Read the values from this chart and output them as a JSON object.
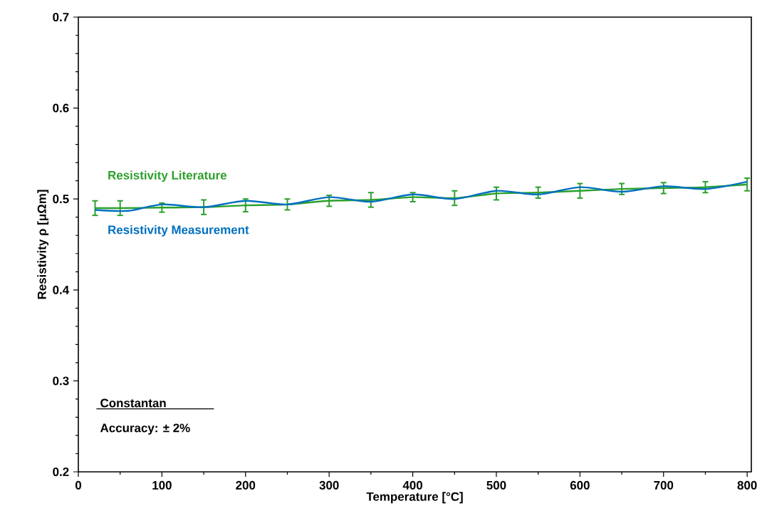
{
  "chart_data": {
    "type": "line",
    "xlabel": "Temperature  [°C]",
    "ylabel": "Resistivity ρ [μΩm]",
    "xlim": [
      0,
      805
    ],
    "ylim": [
      0.2,
      0.7
    ],
    "xticks": [
      0,
      100,
      200,
      300,
      400,
      500,
      600,
      700,
      800
    ],
    "yticks": [
      0.2,
      0.3,
      0.4,
      0.5,
      0.6,
      0.7
    ],
    "legend": false,
    "grid": false,
    "marker": "none",
    "series": [
      {
        "name": "Resistivity Literature",
        "color": "#2ca02c",
        "x": [
          20,
          50,
          100,
          150,
          200,
          250,
          300,
          350,
          400,
          450,
          500,
          550,
          600,
          650,
          700,
          750,
          800
        ],
        "values": [
          0.49,
          0.49,
          0.4905,
          0.491,
          0.493,
          0.494,
          0.498,
          0.499,
          0.502,
          0.501,
          0.506,
          0.507,
          0.509,
          0.511,
          0.512,
          0.513,
          0.516
        ],
        "errors": [
          0.008,
          0.008,
          0.005,
          0.008,
          0.007,
          0.006,
          0.006,
          0.008,
          0.005,
          0.008,
          0.007,
          0.006,
          0.008,
          0.006,
          0.006,
          0.006,
          0.007
        ]
      },
      {
        "name": "Resistivity Measurement",
        "color": "#0070c0",
        "x": [
          20,
          60,
          100,
          150,
          200,
          250,
          300,
          350,
          400,
          450,
          500,
          550,
          600,
          650,
          700,
          750,
          800
        ],
        "values": [
          0.488,
          0.487,
          0.494,
          0.491,
          0.498,
          0.494,
          0.502,
          0.497,
          0.505,
          0.5,
          0.509,
          0.505,
          0.513,
          0.508,
          0.514,
          0.511,
          0.519
        ]
      }
    ],
    "annotations": [
      "Constantan",
      "Accuracy: ± 2%"
    ]
  }
}
